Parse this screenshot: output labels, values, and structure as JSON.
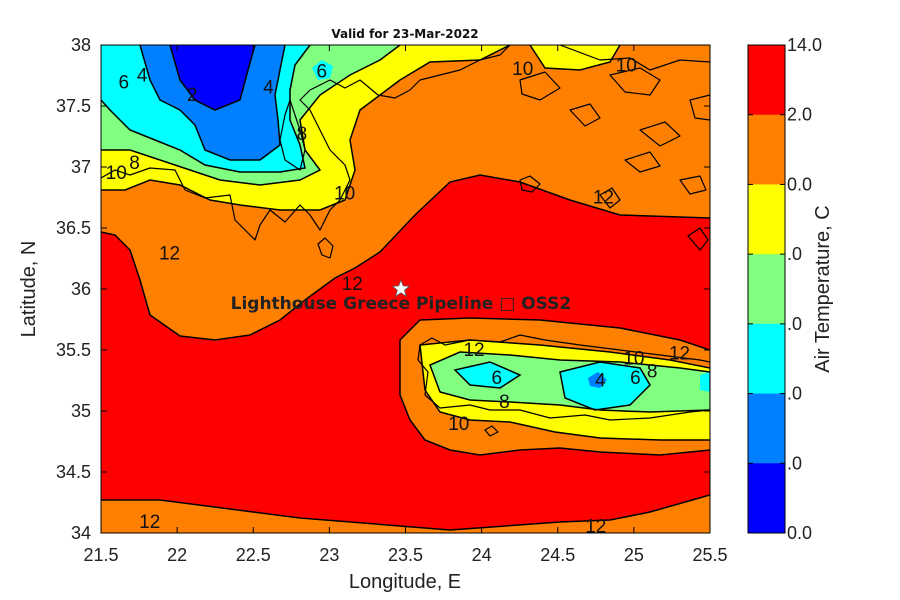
{
  "chart_data": {
    "type": "heatmap",
    "title": "Valid for 23-Mar-2022",
    "xlabel": "Longitude, E",
    "ylabel": "Latitude, N",
    "xlim": [
      21.5,
      25.5
    ],
    "ylim": [
      34,
      38
    ],
    "x_ticks": [
      "21.5",
      "22",
      "22.5",
      "23",
      "23.5",
      "24",
      "24.5",
      "25",
      "25.5"
    ],
    "y_ticks": [
      "34",
      "34.5",
      "35",
      "35.5",
      "36",
      "36.5",
      "37",
      "37.5",
      "38"
    ],
    "colorbar": {
      "label": "Air Temperature, C",
      "tick_labels": [
        "14.0",
        "2.0",
        "0.0",
        ".0",
        ".0",
        ".0",
        ".0",
        "0.0"
      ],
      "colors": [
        "#ff0000",
        "#ff8000",
        "#ffff00",
        "#80ff80",
        "#00ffff",
        "#0080ff",
        "#0000ff"
      ]
    },
    "contour_labels": [
      {
        "text": "4",
        "lon": 21.77,
        "lat": 37.76
      },
      {
        "text": "6",
        "lon": 21.65,
        "lat": 37.7
      },
      {
        "text": "2",
        "lon": 22.1,
        "lat": 37.6
      },
      {
        "text": "4",
        "lon": 22.6,
        "lat": 37.66
      },
      {
        "text": "6",
        "lon": 22.95,
        "lat": 37.79
      },
      {
        "text": "10",
        "lon": 24.27,
        "lat": 37.81
      },
      {
        "text": "10",
        "lon": 24.95,
        "lat": 37.84
      },
      {
        "text": "8",
        "lon": 22.82,
        "lat": 37.28
      },
      {
        "text": "8",
        "lon": 21.72,
        "lat": 37.04
      },
      {
        "text": "10",
        "lon": 21.6,
        "lat": 36.96
      },
      {
        "text": "10",
        "lon": 23.1,
        "lat": 36.79
      },
      {
        "text": "12",
        "lon": 24.8,
        "lat": 36.76
      },
      {
        "text": "12",
        "lon": 21.95,
        "lat": 36.3
      },
      {
        "text": "12",
        "lon": 23.15,
        "lat": 36.05
      },
      {
        "text": "12",
        "lon": 23.95,
        "lat": 35.51
      },
      {
        "text": "10",
        "lon": 25.0,
        "lat": 35.44
      },
      {
        "text": "12",
        "lon": 25.3,
        "lat": 35.48
      },
      {
        "text": "6",
        "lon": 24.1,
        "lat": 35.28
      },
      {
        "text": "4",
        "lon": 24.78,
        "lat": 35.26
      },
      {
        "text": "6",
        "lon": 25.01,
        "lat": 35.28
      },
      {
        "text": "8",
        "lon": 25.12,
        "lat": 35.33
      },
      {
        "text": "8",
        "lon": 24.15,
        "lat": 35.08
      },
      {
        "text": "10",
        "lon": 23.85,
        "lat": 34.9
      },
      {
        "text": "12",
        "lon": 21.82,
        "lat": 34.1
      },
      {
        "text": "12",
        "lon": 24.75,
        "lat": 34.06
      }
    ],
    "marker": {
      "label": "Lighthouse Greece Pipeline □ OSS2",
      "lon": 23.47,
      "lat": 36.0
    }
  }
}
